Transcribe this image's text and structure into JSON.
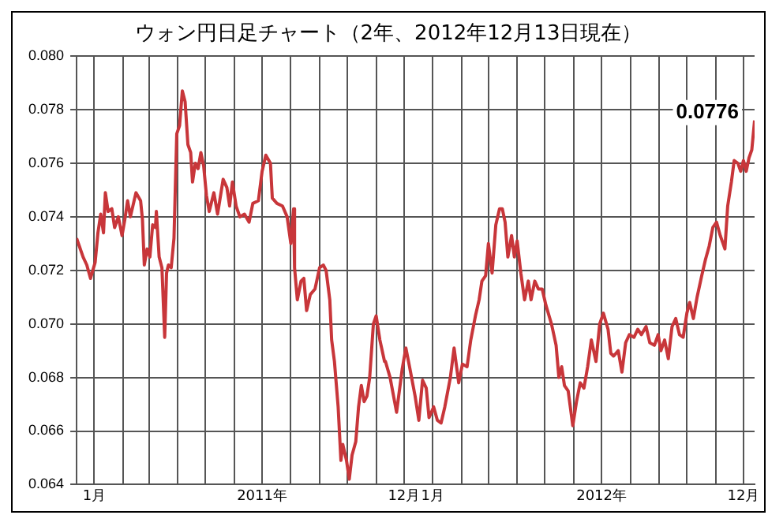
{
  "chart_data": {
    "type": "line",
    "title": "ウォン円日足チャート（2年、2012年12月13日現在）",
    "xlim": [
      "2010-12-13",
      "2012-12-13"
    ],
    "xticks": [
      {
        "value": "2011-01-01",
        "label": "1月"
      },
      {
        "value": "2011-02-01",
        "label": null
      },
      {
        "value": "2011-03-01",
        "label": null
      },
      {
        "value": "2011-04-01",
        "label": null
      },
      {
        "value": "2011-05-01",
        "label": null
      },
      {
        "value": "2011-06-01",
        "label": null
      },
      {
        "value": "2011-07-01",
        "label": "2011年"
      },
      {
        "value": "2011-08-01",
        "label": null
      },
      {
        "value": "2011-09-01",
        "label": null
      },
      {
        "value": "2011-10-01",
        "label": null
      },
      {
        "value": "2011-11-01",
        "label": null
      },
      {
        "value": "2011-12-01",
        "label": "12月"
      },
      {
        "value": "2012-01-01",
        "label": "1月"
      },
      {
        "value": "2012-02-01",
        "label": null
      },
      {
        "value": "2012-03-01",
        "label": null
      },
      {
        "value": "2012-04-01",
        "label": null
      },
      {
        "value": "2012-05-01",
        "label": null
      },
      {
        "value": "2012-06-01",
        "label": null
      },
      {
        "value": "2012-07-01",
        "label": "2012年"
      },
      {
        "value": "2012-08-01",
        "label": null
      },
      {
        "value": "2012-09-01",
        "label": null
      },
      {
        "value": "2012-10-01",
        "label": null
      },
      {
        "value": "2012-11-01",
        "label": null
      },
      {
        "value": "2012-12-01",
        "label": "12月"
      }
    ],
    "ylim": [
      0.064,
      0.08
    ],
    "yticks": [
      0.064,
      0.066,
      0.068,
      {
        "value": 0.07,
        "label": "0.070"
      },
      0.072,
      0.074,
      0.076,
      0.078,
      {
        "value": 0.08,
        "label": "0.080"
      }
    ],
    "grid": true,
    "legend": false,
    "marker": "none",
    "line_style": "solid",
    "annotations": [
      {
        "text": "0.0776",
        "x": "2012-12-13",
        "y": 0.0776
      }
    ],
    "series": [
      {
        "color": "#c8363a",
        "x": [
          "2010-12-13",
          "2010-12-16",
          "2010-12-20",
          "2010-12-24",
          "2010-12-28",
          "2011-01-02",
          "2011-01-05",
          "2011-01-08",
          "2011-01-11",
          "2011-01-13",
          "2011-01-16",
          "2011-01-20",
          "2011-01-23",
          "2011-01-27",
          "2011-01-31",
          "2011-02-03",
          "2011-02-06",
          "2011-02-09",
          "2011-02-15",
          "2011-02-20",
          "2011-02-22",
          "2011-02-24",
          "2011-02-27",
          "2011-03-02",
          "2011-03-05",
          "2011-03-08",
          "2011-03-09",
          "2011-03-12",
          "2011-03-15",
          "2011-03-18",
          "2011-03-20",
          "2011-03-22",
          "2011-03-25",
          "2011-03-28",
          "2011-03-31",
          "2011-04-03",
          "2011-04-06",
          "2011-04-09",
          "2011-04-12",
          "2011-04-15",
          "2011-04-17",
          "2011-04-20",
          "2011-04-23",
          "2011-04-26",
          "2011-04-29",
          "2011-05-02",
          "2011-05-05",
          "2011-05-10",
          "2011-05-14",
          "2011-05-20",
          "2011-05-24",
          "2011-05-27",
          "2011-05-30",
          "2011-06-03",
          "2011-06-07",
          "2011-06-12",
          "2011-06-17",
          "2011-06-21",
          "2011-06-27",
          "2011-07-01",
          "2011-07-05",
          "2011-07-10",
          "2011-07-12",
          "2011-07-17",
          "2011-07-23",
          "2011-07-28",
          "2011-08-01",
          "2011-08-04",
          "2011-08-05",
          "2011-08-08",
          "2011-08-12",
          "2011-08-15",
          "2011-08-18",
          "2011-08-22",
          "2011-08-27",
          "2011-09-01",
          "2011-09-05",
          "2011-09-08",
          "2011-09-12",
          "2011-09-14",
          "2011-09-17",
          "2011-09-21",
          "2011-09-24",
          "2011-09-26",
          "2011-09-30",
          "2011-10-03",
          "2011-10-06",
          "2011-10-10",
          "2011-10-13",
          "2011-10-16",
          "2011-10-19",
          "2011-10-22",
          "2011-10-25",
          "2011-10-29",
          "2011-11-01",
          "2011-11-05",
          "2011-11-10",
          "2011-11-11",
          "2011-11-16",
          "2011-11-23",
          "2011-11-29",
          "2011-12-03",
          "2011-12-07",
          "2011-12-13",
          "2011-12-17",
          "2011-12-21",
          "2011-12-25",
          "2011-12-28",
          "2012-01-02",
          "2012-01-06",
          "2012-01-10",
          "2012-01-14",
          "2012-01-20",
          "2012-01-24",
          "2012-01-29",
          "2012-02-02",
          "2012-02-07",
          "2012-02-11",
          "2012-02-16",
          "2012-02-20",
          "2012-02-23",
          "2012-02-27",
          "2012-03-01",
          "2012-03-05",
          "2012-03-09",
          "2012-03-13",
          "2012-03-16",
          "2012-03-19",
          "2012-03-22",
          "2012-03-26",
          "2012-03-29",
          "2012-04-01",
          "2012-04-05",
          "2012-04-09",
          "2012-04-13",
          "2012-04-16",
          "2012-04-20",
          "2012-04-24",
          "2012-04-28",
          "2012-05-02",
          "2012-05-08",
          "2012-05-13",
          "2012-05-16",
          "2012-05-19",
          "2012-05-22",
          "2012-05-26",
          "2012-05-31",
          "2012-06-04",
          "2012-06-08",
          "2012-06-12",
          "2012-06-16",
          "2012-06-20",
          "2012-06-25",
          "2012-06-29",
          "2012-07-03",
          "2012-07-08",
          "2012-07-11",
          "2012-07-14",
          "2012-07-19",
          "2012-07-23",
          "2012-07-27",
          "2012-07-31",
          "2012-08-05",
          "2012-08-09",
          "2012-08-13",
          "2012-08-18",
          "2012-08-22",
          "2012-08-27",
          "2012-08-31",
          "2012-09-03",
          "2012-09-07",
          "2012-09-11",
          "2012-09-15",
          "2012-09-19",
          "2012-09-23",
          "2012-09-27",
          "2012-10-01",
          "2012-10-04",
          "2012-10-08",
          "2012-10-12",
          "2012-10-17",
          "2012-10-21",
          "2012-10-25",
          "2012-10-29",
          "2012-11-02",
          "2012-11-06",
          "2012-11-11",
          "2012-11-14",
          "2012-11-18",
          "2012-11-21",
          "2012-11-25",
          "2012-11-28",
          "2012-12-01",
          "2012-12-04",
          "2012-12-07",
          "2012-12-10",
          "2012-12-13"
        ],
        "values": [
          0.0732,
          0.0729,
          0.0725,
          0.0722,
          0.0717,
          0.0723,
          0.0734,
          0.0741,
          0.0734,
          0.0749,
          0.0742,
          0.0743,
          0.0736,
          0.074,
          0.0733,
          0.0739,
          0.0746,
          0.074,
          0.0749,
          0.0746,
          0.0739,
          0.0722,
          0.0728,
          0.0725,
          0.0737,
          0.0736,
          0.0742,
          0.0725,
          0.0721,
          0.0695,
          0.0719,
          0.0722,
          0.0721,
          0.0732,
          0.0771,
          0.0774,
          0.0787,
          0.0783,
          0.0767,
          0.0764,
          0.0753,
          0.076,
          0.0758,
          0.0764,
          0.0759,
          0.0748,
          0.0742,
          0.0749,
          0.0741,
          0.0754,
          0.0751,
          0.0744,
          0.0753,
          0.0744,
          0.074,
          0.0741,
          0.0738,
          0.0745,
          0.0746,
          0.0757,
          0.0763,
          0.076,
          0.0747,
          0.0745,
          0.0744,
          0.074,
          0.073,
          0.0743,
          0.0721,
          0.0709,
          0.0716,
          0.0717,
          0.0705,
          0.0711,
          0.0713,
          0.0721,
          0.0722,
          0.072,
          0.0709,
          0.0694,
          0.0686,
          0.0669,
          0.0649,
          0.0655,
          0.0649,
          0.0642,
          0.0651,
          0.0656,
          0.0669,
          0.0677,
          0.0671,
          0.0673,
          0.068,
          0.07,
          0.0703,
          0.0694,
          0.0686,
          0.0686,
          0.068,
          0.0667,
          0.0683,
          0.0691,
          0.0684,
          0.0673,
          0.0664,
          0.0679,
          0.0676,
          0.0665,
          0.0669,
          0.0664,
          0.0663,
          0.0669,
          0.068,
          0.0691,
          0.0678,
          0.0685,
          0.0684,
          0.0694,
          0.0703,
          0.0709,
          0.0716,
          0.0718,
          0.073,
          0.0719,
          0.0737,
          0.0743,
          0.0743,
          0.0738,
          0.0725,
          0.0733,
          0.0725,
          0.0731,
          0.0719,
          0.0709,
          0.0716,
          0.0709,
          0.0716,
          0.0713,
          0.0713,
          0.0707,
          0.07,
          0.0692,
          0.068,
          0.0684,
          0.0677,
          0.0675,
          0.0662,
          0.0671,
          0.0678,
          0.0676,
          0.0684,
          0.0694,
          0.0686,
          0.07,
          0.0704,
          0.0698,
          0.0689,
          0.0688,
          0.069,
          0.0682,
          0.0693,
          0.0696,
          0.0695,
          0.0698,
          0.0696,
          0.0699,
          0.0693,
          0.0692,
          0.0696,
          0.069,
          0.0694,
          0.0687,
          0.0699,
          0.0702,
          0.0696,
          0.0695,
          0.0704,
          0.0708,
          0.0702,
          0.071,
          0.0718,
          0.0724,
          0.0729,
          0.0736,
          0.0738,
          0.0733,
          0.0728,
          0.0744,
          0.0753,
          0.0761,
          0.076,
          0.0757,
          0.0761,
          0.0757,
          0.0762,
          0.0765,
          0.0776
        ]
      }
    ]
  }
}
